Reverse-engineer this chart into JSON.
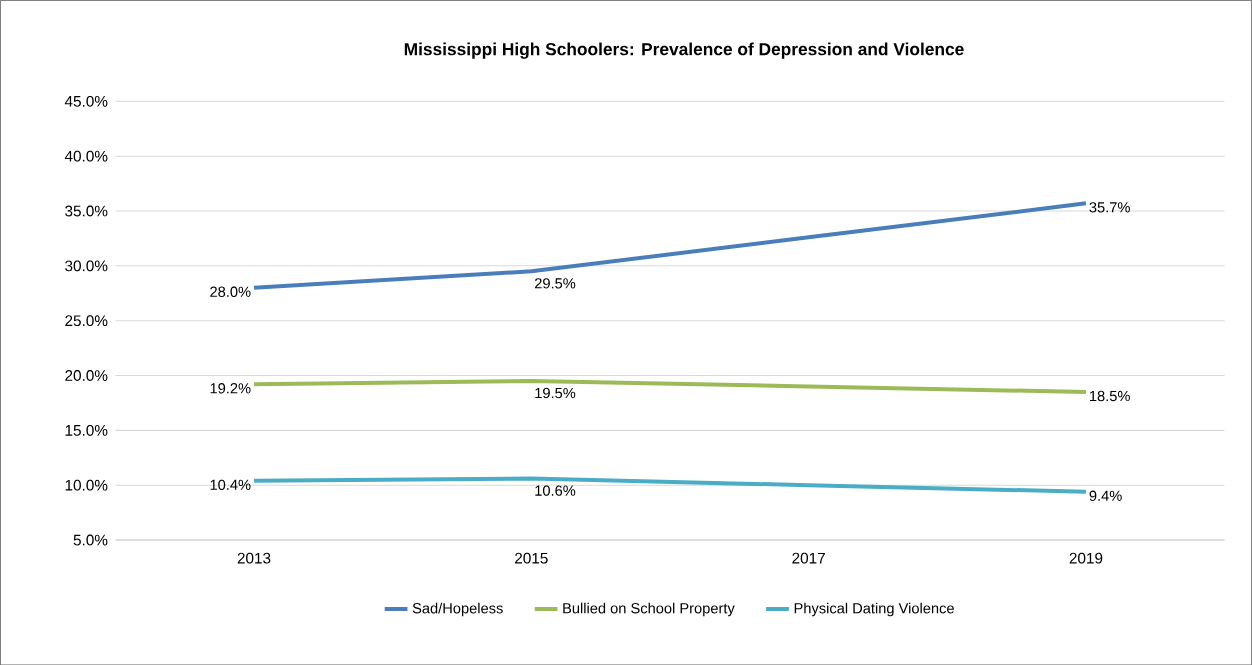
{
  "chart_data": {
    "type": "line",
    "title": "Mississippi High Schoolers: Prevalence of Depression and Violence",
    "categories": [
      "2013",
      "2015",
      "2017",
      "2019"
    ],
    "series": [
      {
        "name": "Sad/Hopeless",
        "color": "#4a7ebb",
        "values": [
          28.0,
          29.5,
          32.6,
          35.7
        ],
        "value_labels": [
          "28.0%",
          "29.5%",
          null,
          "35.7%"
        ]
      },
      {
        "name": "Bullied on School Property",
        "color": "#9bbb59",
        "values": [
          19.2,
          19.5,
          19.0,
          18.5
        ],
        "value_labels": [
          "19.2%",
          "19.5%",
          null,
          "18.5%"
        ]
      },
      {
        "name": "Physical Dating Violence",
        "color": "#4bacc6",
        "values": [
          10.4,
          10.6,
          10.0,
          9.4
        ],
        "value_labels": [
          "10.4%",
          "10.6%",
          null,
          "9.4%"
        ]
      }
    ],
    "ylim": [
      5,
      45
    ],
    "yticks": [
      {
        "value": 5,
        "label": "5.0%"
      },
      {
        "value": 10,
        "label": "10.0%"
      },
      {
        "value": 15,
        "label": "15.0%"
      },
      {
        "value": 20,
        "label": "20.0%"
      },
      {
        "value": 25,
        "label": "25.0%"
      },
      {
        "value": 30,
        "label": "30.0%"
      },
      {
        "value": 35,
        "label": "35.0%"
      },
      {
        "value": 40,
        "label": "40.0%"
      },
      {
        "value": 45,
        "label": "45.0%"
      }
    ],
    "grid": "y",
    "legend": "bottom",
    "marker": "none",
    "line_style": "solid"
  }
}
